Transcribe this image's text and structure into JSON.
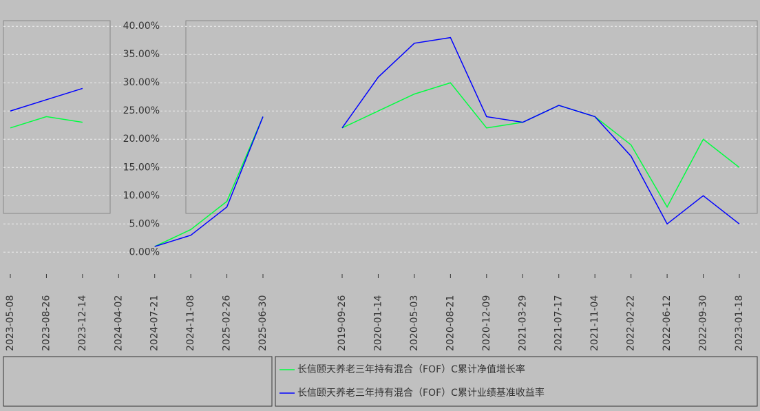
{
  "chart_data": [
    {
      "type": "line",
      "categories": [
        "2023-05-08",
        "2023-08-26",
        "2023-12-14",
        "2024-04-02",
        "2024-07-21",
        "2024-11-08",
        "2025-02-26",
        "2025-06-30"
      ],
      "series": [
        {
          "color": "#00ff40",
          "values": [
            22,
            24,
            23,
            null,
            1,
            4,
            9,
            24
          ]
        },
        {
          "color": "#0000ff",
          "values": [
            25,
            27,
            29,
            null,
            1,
            3,
            8,
            24
          ]
        }
      ],
      "ylim": [
        -3.5,
        41
      ],
      "yticks": [
        {
          "value": 0,
          "label": "0.00%"
        },
        {
          "value": 5,
          "label": "5.00%"
        },
        {
          "value": 10,
          "label": "10.00%"
        },
        {
          "value": 15,
          "label": "15.00%"
        },
        {
          "value": 20,
          "label": "20.00%"
        },
        {
          "value": 25,
          "label": "25.00%"
        },
        {
          "value": 30,
          "label": "30.00%"
        },
        {
          "value": 35,
          "label": "35.00%"
        },
        {
          "value": 40,
          "label": "40.00%"
        }
      ],
      "grid": true
    },
    {
      "type": "line",
      "categories": [
        "2019-09-26",
        "2020-01-14",
        "2020-05-03",
        "2020-08-21",
        "2020-12-09",
        "2021-03-29",
        "2021-07-17",
        "2021-11-04",
        "2022-02-22",
        "2022-06-12",
        "2022-09-30",
        "2023-01-18"
      ],
      "series": [
        {
          "name": "长信颐天养老三年持有混合（FOF）C累计净值增长率",
          "color": "#00ff40",
          "values": [
            22,
            25,
            28,
            30,
            22,
            23,
            26,
            24,
            19,
            8,
            20,
            15
          ]
        },
        {
          "name": "长信颐天养老三年持有混合（FOF）C累计业绩基准收益率",
          "color": "#0000ff",
          "values": [
            22,
            31,
            37,
            38,
            24,
            23,
            26,
            24,
            17,
            5,
            10,
            5
          ]
        }
      ],
      "ylim": [
        -3.5,
        41
      ]
    }
  ]
}
